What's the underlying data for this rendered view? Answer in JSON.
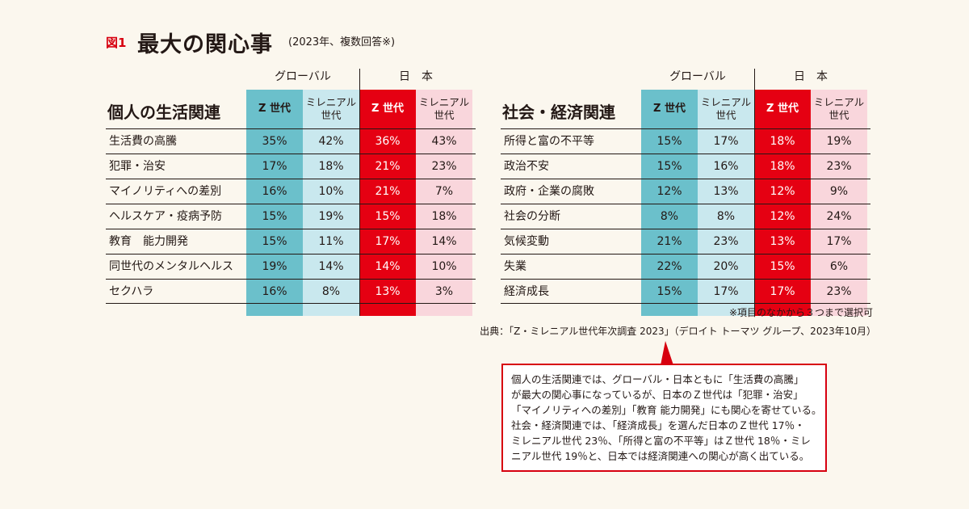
{
  "figure": {
    "label": "図1",
    "title": "最大の関心事",
    "subtitle": "(2023年、複数回答※)"
  },
  "colors": {
    "global_z": "#6bc0cb",
    "global_m": "#c9e8ee",
    "japan_z": "#e50012",
    "japan_m": "#f9d6dc",
    "accent": "#d7000f"
  },
  "groups": {
    "global": "グローバル",
    "japan": "日　本"
  },
  "columns": [
    "Z 世代",
    "ミレニアル\n世代",
    "Z 世代",
    "ミレニアル\n世代"
  ],
  "chart_data": [
    {
      "type": "table",
      "title": "個人の生活関連",
      "column_groups": [
        "グローバル",
        "日　本"
      ],
      "columns": [
        "Z 世代",
        "ミレニアル世代",
        "Z 世代",
        "ミレニアル世代"
      ],
      "rows": [
        {
          "label": "生活費の高騰",
          "values": [
            "35%",
            "42%",
            "36%",
            "43%"
          ]
        },
        {
          "label": "犯罪・治安",
          "values": [
            "17%",
            "18%",
            "21%",
            "23%"
          ]
        },
        {
          "label": "マイノリティへの差別",
          "values": [
            "16%",
            "10%",
            "21%",
            "7%"
          ]
        },
        {
          "label": "ヘルスケア・疫病予防",
          "values": [
            "15%",
            "19%",
            "15%",
            "18%"
          ]
        },
        {
          "label": "教育　能力開発",
          "values": [
            "15%",
            "11%",
            "17%",
            "14%"
          ]
        },
        {
          "label": "同世代のメンタルヘルス",
          "values": [
            "19%",
            "14%",
            "14%",
            "10%"
          ]
        },
        {
          "label": "セクハラ",
          "values": [
            "16%",
            "8%",
            "13%",
            "3%"
          ]
        }
      ]
    },
    {
      "type": "table",
      "title": "社会・経済関連",
      "column_groups": [
        "グローバル",
        "日　本"
      ],
      "columns": [
        "Z 世代",
        "ミレニアル世代",
        "Z 世代",
        "ミレニアル世代"
      ],
      "rows": [
        {
          "label": "所得と富の不平等",
          "values": [
            "15%",
            "17%",
            "18%",
            "19%"
          ]
        },
        {
          "label": "政治不安",
          "values": [
            "15%",
            "16%",
            "18%",
            "23%"
          ]
        },
        {
          "label": "政府・企業の腐敗",
          "values": [
            "12%",
            "13%",
            "12%",
            "9%"
          ]
        },
        {
          "label": "社会の分断",
          "values": [
            "8%",
            "8%",
            "12%",
            "24%"
          ]
        },
        {
          "label": "気候変動",
          "values": [
            "21%",
            "23%",
            "13%",
            "17%"
          ]
        },
        {
          "label": "失業",
          "values": [
            "22%",
            "20%",
            "15%",
            "6%"
          ]
        },
        {
          "label": "経済成長",
          "values": [
            "15%",
            "17%",
            "17%",
            "23%"
          ]
        }
      ]
    }
  ],
  "notes": {
    "asterisk": "※項目のなかから３つまで選択可",
    "source": "出典：「Z・ミレニアル世代年次調査 2023」（デロイト トーマツ グループ、2023年10月）"
  },
  "callout": {
    "lines": [
      "個人の生活関連では、グローバル・日本ともに「生活費の高騰」",
      "が最大の関心事になっているが、日本のＺ世代は「犯罪・治安」",
      "「マイノリティへの差別」「教育 能力開発」にも関心を寄せている。",
      "社会・経済関連では、「経済成長」を選んだ日本のＺ世代 17％・",
      "ミレニアル世代 23％、「所得と富の不平等」はＺ世代 18％・ミレ",
      "ニアル世代 19％と、日本では経済関連への関心が高く出ている。"
    ]
  }
}
